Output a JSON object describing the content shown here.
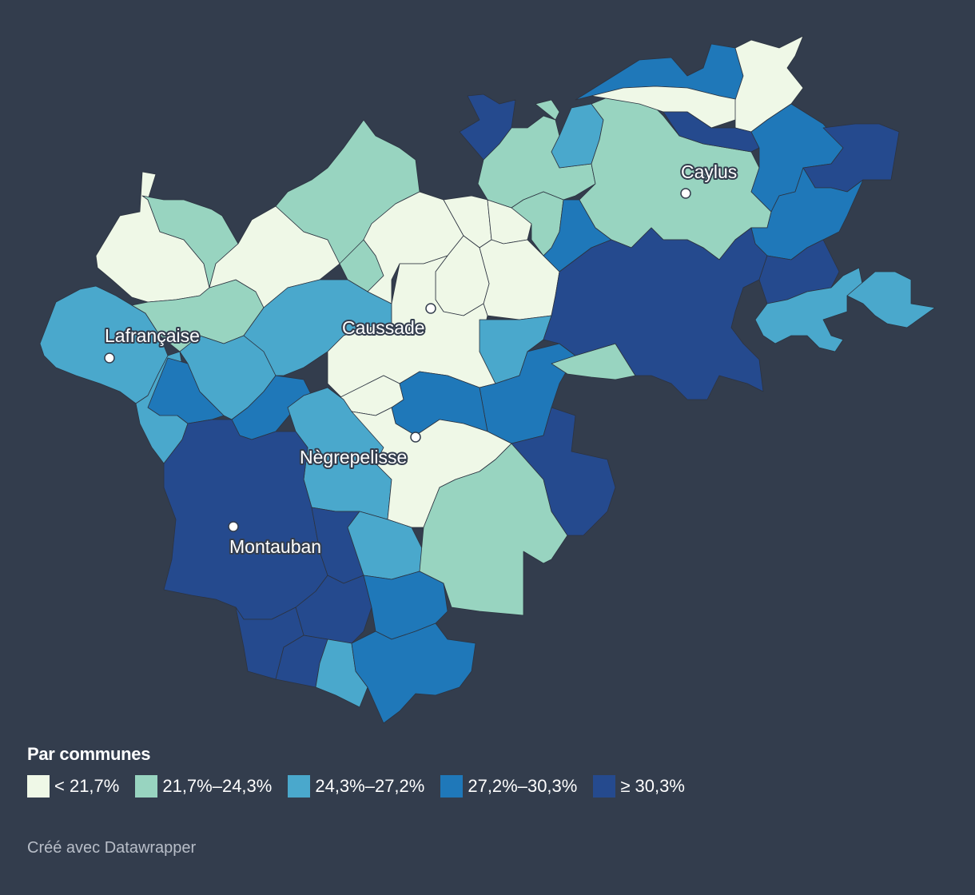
{
  "map": {
    "regions": "communes",
    "cities": [
      {
        "name": "Caylus"
      },
      {
        "name": "Lafrançaise"
      },
      {
        "name": "Caussade"
      },
      {
        "name": "Nègrepelisse"
      },
      {
        "name": "Montauban"
      }
    ]
  },
  "legend": {
    "title": "Par communes",
    "bins": [
      {
        "label": "< 21,7%",
        "color": "#eff8e7"
      },
      {
        "label": "21,7%–24,3%",
        "color": "#98d4c0"
      },
      {
        "label": "24,3%–27,2%",
        "color": "#4aa8cc"
      },
      {
        "label": "27,2%–30,3%",
        "color": "#1f78b9"
      },
      {
        "label": "≥ 30,3%",
        "color": "#254a8e"
      }
    ]
  },
  "footer": {
    "credit": "Créé avec Datawrapper"
  }
}
